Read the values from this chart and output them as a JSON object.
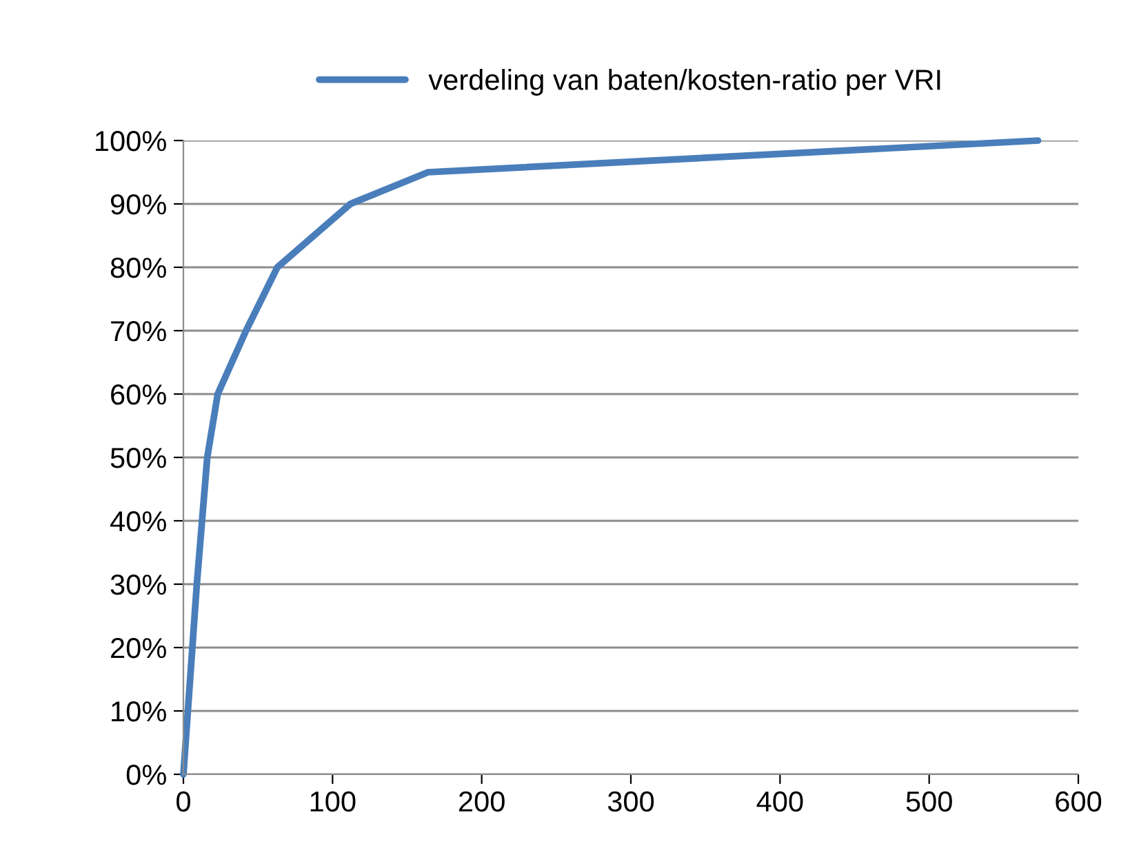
{
  "chart_data": {
    "type": "line",
    "x": [
      0,
      9,
      16,
      23,
      42,
      63,
      112,
      164,
      573
    ],
    "series": [
      {
        "name": "verdeling van baten/kosten-ratio per VRI",
        "color": "#4a7ebb",
        "values": [
          0,
          30,
          50,
          60,
          70,
          80,
          90,
          95,
          100
        ]
      }
    ],
    "xlim": [
      0,
      600
    ],
    "xticks": [
      0,
      100,
      200,
      300,
      400,
      500,
      600
    ],
    "ylim": [
      0,
      100
    ],
    "yticks": [
      {
        "value": 0,
        "label": "0%"
      },
      {
        "value": 10,
        "label": "10%"
      },
      {
        "value": 20,
        "label": "20%"
      },
      {
        "value": 30,
        "label": "30%"
      },
      {
        "value": 40,
        "label": "40%"
      },
      {
        "value": 50,
        "label": "50%"
      },
      {
        "value": 60,
        "label": "60%"
      },
      {
        "value": 70,
        "label": "70%"
      },
      {
        "value": 80,
        "label": "80%"
      },
      {
        "value": 90,
        "label": "90%"
      },
      {
        "value": 100,
        "label": "100%"
      }
    ],
    "grid": "y",
    "legend": "top",
    "marker": "none",
    "line_style": "solid"
  }
}
